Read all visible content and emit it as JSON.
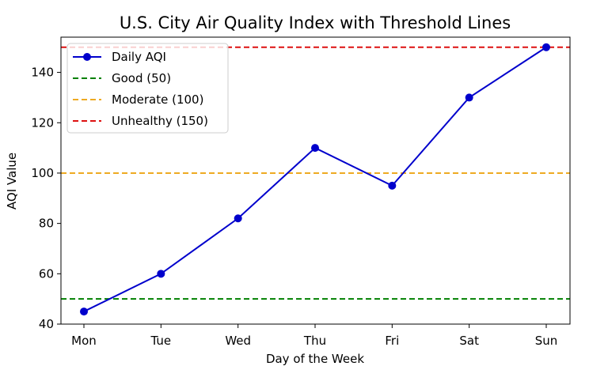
{
  "chart_data": {
    "type": "line",
    "title": "U.S. City Air Quality Index with Threshold Lines",
    "xlabel": "Day of the Week",
    "ylabel": "AQI Value",
    "categories": [
      "Mon",
      "Tue",
      "Wed",
      "Thu",
      "Fri",
      "Sat",
      "Sun"
    ],
    "ylim": [
      40,
      154
    ],
    "yticks": [
      40,
      60,
      80,
      100,
      120,
      140
    ],
    "grid": false,
    "legend_position": "upper-left",
    "series": [
      {
        "name": "Daily AQI",
        "values": [
          45,
          60,
          82,
          110,
          95,
          130,
          150
        ],
        "color": "#0000cc",
        "marker": "circle"
      }
    ],
    "thresholds": [
      {
        "name": "Good (50)",
        "value": 50,
        "color": "#008000",
        "style": "dashed"
      },
      {
        "name": "Moderate (100)",
        "value": 100,
        "color": "#eeaa22",
        "style": "dashed"
      },
      {
        "name": "Unhealthy (150)",
        "value": 150,
        "color": "#dd1111",
        "style": "dashed"
      }
    ]
  }
}
